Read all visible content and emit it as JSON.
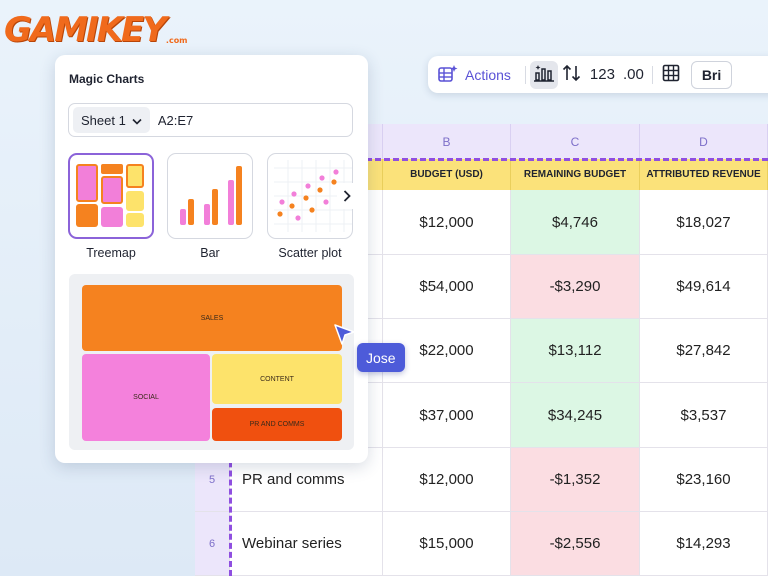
{
  "logo": {
    "text": "GAMIKEY",
    "domain": ".com"
  },
  "toolbar": {
    "actions_label": "Actions",
    "number_format": "123",
    "decimal_format": ".00",
    "font_name": "Bri"
  },
  "panel": {
    "title": "Magic Charts",
    "sheet_select": "Sheet 1",
    "range": "A2:E7",
    "chart_options": [
      {
        "label": "Treemap",
        "selected": true
      },
      {
        "label": "Bar",
        "selected": false
      },
      {
        "label": "Scatter plot",
        "selected": false
      }
    ],
    "treemap_preview": {
      "blocks": [
        {
          "label": "SALES",
          "color": "#f5821f"
        },
        {
          "label": "SOCIAL",
          "color": "#f481dc"
        },
        {
          "label": "CONTENT",
          "color": "#fde36b"
        },
        {
          "label": "PR AND COMMS",
          "color": "#f0500f"
        }
      ]
    }
  },
  "collaborator": {
    "name": "Jose",
    "color": "#4d5bd9"
  },
  "sheet": {
    "columns": [
      "B",
      "C",
      "D"
    ],
    "headers": [
      "BUDGET (USD)",
      "REMAINING BUDGET",
      "ATTRIBUTED REVENUE"
    ],
    "rows": [
      {
        "num": "",
        "name": "",
        "budget": "$12,000",
        "remaining": "$4,746",
        "status": "positive",
        "revenue": "$18,027"
      },
      {
        "num": "",
        "name": "",
        "budget": "$54,000",
        "remaining": "-$3,290",
        "status": "negative",
        "revenue": "$49,614"
      },
      {
        "num": "",
        "name": "",
        "budget": "$22,000",
        "remaining": "$13,112",
        "status": "positive",
        "revenue": "$27,842"
      },
      {
        "num": "",
        "name": "",
        "budget": "$37,000",
        "remaining": "$34,245",
        "status": "positive",
        "revenue": "$3,537"
      },
      {
        "num": "5",
        "name": "PR and comms",
        "budget": "$12,000",
        "remaining": "-$1,352",
        "status": "negative",
        "revenue": "$23,160"
      },
      {
        "num": "6",
        "name": "Webinar series",
        "budget": "$15,000",
        "remaining": "-$2,556",
        "status": "negative",
        "revenue": "$14,293"
      }
    ]
  },
  "colors": {
    "accent": "#5a52d6",
    "header_purple": "#ece6fb",
    "header_yellow": "#fbe27a",
    "positive_bg": "#dcf7e4",
    "negative_bg": "#fbdde2",
    "selection_dash": "#8f4fe0"
  }
}
